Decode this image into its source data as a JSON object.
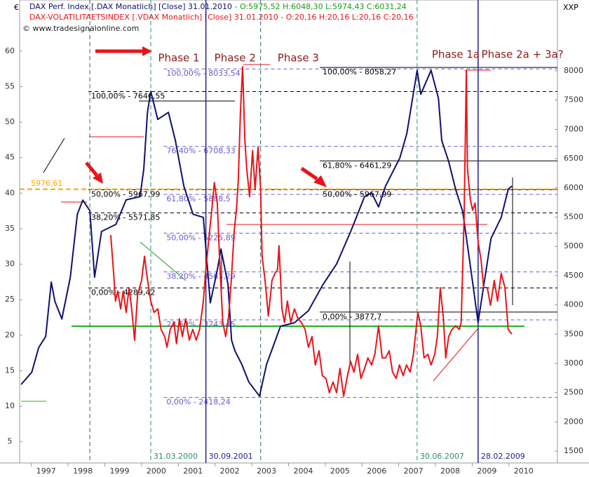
{
  "chart_data": {
    "type": "line",
    "left_unit": "€",
    "right_unit": "XXP",
    "source": "© www.tradesignalonline.com",
    "xlim": [
      1996.68,
      2011.32
    ],
    "xticks": [
      1997,
      1998,
      1999,
      2000,
      2001,
      2002,
      2003,
      2004,
      2005,
      2006,
      2007,
      2008,
      2009,
      2010
    ],
    "ylim": [
      2.0,
      67.2
    ],
    "yticks": [
      5,
      10,
      15,
      20,
      25,
      30,
      35,
      40,
      45,
      50,
      55,
      60
    ],
    "y2lim": [
      1298,
      9211
    ],
    "y2ticks": [
      1500,
      2000,
      2500,
      3000,
      3500,
      4000,
      4500,
      5000,
      5500,
      6000,
      6500,
      7000,
      7500,
      8000
    ],
    "grid": false,
    "series": [
      {
        "name": "DAX Perf. Index [.DAX Monatlich] [Close] 31.01.2010",
        "quote": "- O:5975,52 H:6048,30 L:5974,43 C:6031,24",
        "color": "#101070",
        "quote_color": "#1a9a1a",
        "axis": "y2",
        "x": [
          1996.72,
          1997.01,
          1997.2,
          1997.39,
          1997.54,
          1997.64,
          1997.83,
          1998.06,
          1998.25,
          1998.4,
          1998.59,
          1998.72,
          1998.91,
          1999.3,
          1999.58,
          1999.96,
          2000.06,
          2000.16,
          2000.25,
          2000.44,
          2000.73,
          2000.92,
          2001.15,
          2001.4,
          2001.68,
          2001.87,
          2002.06,
          2002.16,
          2002.35,
          2002.45,
          2002.54,
          2002.73,
          2002.92,
          2003.21,
          2003.4,
          2003.78,
          2004.16,
          2004.54,
          2004.93,
          2005.31,
          2005.69,
          2006.07,
          2006.26,
          2006.45,
          2006.64,
          2007.03,
          2007.22,
          2007.5,
          2007.6,
          2007.88,
          2008.08,
          2008.17,
          2008.36,
          2008.55,
          2008.74,
          2008.9,
          2009.03,
          2009.16,
          2009.51,
          2009.79,
          2009.98,
          2010.08
        ],
        "values": [
          2640,
          2850,
          3270,
          3460,
          4390,
          4060,
          3760,
          4475,
          5550,
          5790,
          5610,
          4475,
          5255,
          5375,
          5795,
          5850,
          6330,
          7290,
          7650,
          7170,
          7290,
          6810,
          6030,
          5550,
          5495,
          4035,
          4595,
          4955,
          4355,
          3395,
          3215,
          2980,
          2680,
          2440,
          2980,
          3635,
          3695,
          3900,
          4340,
          4700,
          5250,
          5850,
          5915,
          5675,
          6030,
          6510,
          6930,
          8010,
          7600,
          8010,
          7530,
          6810,
          6450,
          5970,
          5600,
          4890,
          4300,
          3700,
          5135,
          5495,
          5975,
          6030
        ]
      },
      {
        "name": "DAX-VOLATILITAETSINDEX [.VDAX Monatlich] [Close] 31.01.2010",
        "quote": "- O:20,16 H:20,16 L:20,16 C:20,16",
        "color": "#e8141a",
        "quote_color": "#e8141a",
        "axis": "y",
        "x": [
          1999.16,
          1999.24,
          1999.29,
          1999.35,
          1999.43,
          1999.5,
          1999.58,
          1999.66,
          1999.73,
          1999.81,
          1999.89,
          2000.0,
          2000.08,
          2000.15,
          2000.25,
          2000.34,
          2000.44,
          2000.53,
          2000.63,
          2000.69,
          2000.78,
          2000.88,
          2000.95,
          2001.03,
          2001.11,
          2001.2,
          2001.3,
          2001.39,
          2001.49,
          2001.58,
          2001.68,
          2001.74,
          2001.83,
          2001.91,
          2001.98,
          2002.06,
          2002.12,
          2002.21,
          2002.29,
          2002.37,
          2002.44,
          2002.52,
          2002.58,
          2002.63,
          2002.69,
          2002.75,
          2002.81,
          2002.86,
          2002.94,
          2003.02,
          2003.09,
          2003.17,
          2003.24,
          2003.28,
          2003.36,
          2003.45,
          2003.55,
          2003.63,
          2003.7,
          2003.74,
          2003.82,
          2003.89,
          2003.97,
          2004.06,
          2004.16,
          2004.26,
          2004.35,
          2004.45,
          2004.54,
          2004.64,
          2004.73,
          2004.83,
          2004.92,
          2005.02,
          2005.11,
          2005.21,
          2005.31,
          2005.4,
          2005.5,
          2005.59,
          2005.69,
          2005.78,
          2005.88,
          2005.97,
          2006.07,
          2006.16,
          2006.26,
          2006.35,
          2006.45,
          2006.55,
          2006.64,
          2006.74,
          2006.83,
          2006.93,
          2007.02,
          2007.12,
          2007.21,
          2007.31,
          2007.4,
          2007.52,
          2007.6,
          2007.69,
          2007.79,
          2007.88,
          2007.98,
          2008.05,
          2008.13,
          2008.21,
          2008.28,
          2008.36,
          2008.45,
          2008.55,
          2008.65,
          2008.7,
          2008.78,
          2008.84,
          2008.87,
          2008.95,
          2009.01,
          2009.08,
          2009.16,
          2009.24,
          2009.31,
          2009.41,
          2009.5,
          2009.6,
          2009.69,
          2009.79,
          2009.89,
          2009.98,
          2010.08
        ],
        "values": [
          34.1,
          28.7,
          24.8,
          26.2,
          23.7,
          26.2,
          23.2,
          26.7,
          23.7,
          19.3,
          25.7,
          27.7,
          31.1,
          28.2,
          24.8,
          23.2,
          23.7,
          20.8,
          19.8,
          18.3,
          20.8,
          21.8,
          18.8,
          22.3,
          19.8,
          22.3,
          19.3,
          20.8,
          19.3,
          20.8,
          24.8,
          28.7,
          33.6,
          37.6,
          41.5,
          38.6,
          31.1,
          21.8,
          19.8,
          22.7,
          27.7,
          34.6,
          37.6,
          41.5,
          51.4,
          57.8,
          47.5,
          43.5,
          39.5,
          46.0,
          40.5,
          46.5,
          40.5,
          31.1,
          27.7,
          22.7,
          27.7,
          28.7,
          29.2,
          32.6,
          23.7,
          21.8,
          24.8,
          21.8,
          23.7,
          22.3,
          21.8,
          20.8,
          18.3,
          19.8,
          15.8,
          17.8,
          14.3,
          13.9,
          11.9,
          13.4,
          11.9,
          15.3,
          11.4,
          13.9,
          16.3,
          14.8,
          17.3,
          13.9,
          15.3,
          16.8,
          15.8,
          17.3,
          21.3,
          16.8,
          16.8,
          17.8,
          14.8,
          13.9,
          15.8,
          14.3,
          15.8,
          14.8,
          17.3,
          23.2,
          21.3,
          16.8,
          17.3,
          15.8,
          17.3,
          19.8,
          26.7,
          22.7,
          16.8,
          19.8,
          20.8,
          21.3,
          20.8,
          21.8,
          36.6,
          57.3,
          43.5,
          39.1,
          37.6,
          38.6,
          33.1,
          30.7,
          26.7,
          26.7,
          24.2,
          27.7,
          24.8,
          28.7,
          26.7,
          20.8,
          20.16
        ]
      }
    ],
    "level_sets": [
      {
        "color": "#6a5acd",
        "from": 2000.6,
        "style": "dashed",
        "levels": [
          {
            "label": "100,00% - 8033,54",
            "value": 8033.54
          },
          {
            "label": "76,40% - 6708,33",
            "value": 6708.33
          },
          {
            "label": "61,80% - 5888,5",
            "value": 5888.5
          },
          {
            "label": "50,00% - 5225,89",
            "value": 5225.89
          },
          {
            "label": "38,20% - 4563,29",
            "value": 4563.29
          },
          {
            "label": "23,60% - 3743,45",
            "value": 3743.45
          },
          {
            "label": "0,00% - 2418,24",
            "value": 2418.24
          }
        ]
      },
      {
        "color": "#000000",
        "from": 1998.55,
        "style": "dashed",
        "levels": [
          {
            "label": "100,00% - 7646,55",
            "value": 7646.55
          },
          {
            "label": "50,00% - 5967,99",
            "value": 5967.99
          },
          {
            "label": "38,20% - 5571,85",
            "value": 5571.85
          },
          {
            "label": "0,00% - 4289,42",
            "value": 4289.42
          }
        ]
      },
      {
        "color": "#000000",
        "from": 2004.85,
        "style": "solid",
        "levels": [
          {
            "label": "100,00% - 8058,27",
            "value": 8058.27
          },
          {
            "label": "61,80% - 6461,29",
            "value": 6461.29
          },
          {
            "label": "50,00% - 5967,99",
            "value": 5967.99
          },
          {
            "label": "0,00% - 3877,7",
            "value": 3877.7
          }
        ]
      }
    ],
    "reference_line": {
      "label": "5976,61",
      "value": 5976.61,
      "color": "#ffa500"
    },
    "vertical_lines": [
      {
        "x": 1998.59,
        "color": "#2e6e5e",
        "style": "dashed"
      },
      {
        "label": "31.03.2000",
        "x": 2000.25,
        "color": "#2e8b7a",
        "style": "dashed"
      },
      {
        "label": "30.09.2001",
        "x": 2001.75,
        "color": "#202090",
        "style": "solid"
      },
      {
        "x": 2003.24,
        "color": "#2e6e5e",
        "style": "dashed"
      },
      {
        "label": "30.06.2007",
        "x": 2007.5,
        "color": "#2e8b7a",
        "style": "dashed"
      },
      {
        "label": "28.02.2009",
        "x": 2009.16,
        "color": "#202090",
        "style": "solid"
      }
    ],
    "phases": [
      {
        "label": "Phase 1",
        "x": 2000.45,
        "y": 59
      },
      {
        "label": "Phase 2",
        "x": 2001.98,
        "y": 59
      },
      {
        "label": "Phase 3",
        "x": 2003.7,
        "y": 59
      },
      {
        "label": "Phase 1a",
        "x": 2007.9,
        "y": 59.5
      },
      {
        "label": "Phase 2a + 3a?",
        "x": 2009.25,
        "y": 59.5
      }
    ]
  }
}
